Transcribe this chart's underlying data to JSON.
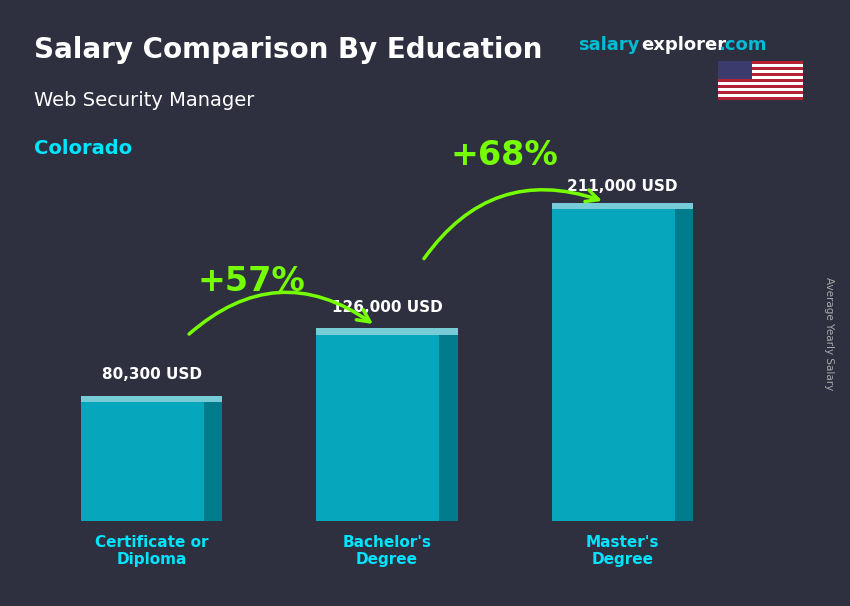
{
  "title": "Salary Comparison By Education",
  "subtitle": "Web Security Manager",
  "location": "Colorado",
  "ylabel": "Average Yearly Salary",
  "categories": [
    "Certificate or\nDiploma",
    "Bachelor's\nDegree",
    "Master's\nDegree"
  ],
  "values": [
    80300,
    126000,
    211000
  ],
  "value_labels": [
    "80,300 USD",
    "126,000 USD",
    "211,000 USD"
  ],
  "pct_labels": [
    "+57%",
    "+68%"
  ],
  "bar_color": "#00bcd4",
  "bar_color_dark": "#007a8a",
  "bar_color_light": "#80deea",
  "title_color": "#ffffff",
  "subtitle_color": "#ffffff",
  "location_color": "#00e5ff",
  "watermark_salary_color": "#00bcd4",
  "watermark_explorer_color": "#ffffff",
  "watermark_com_color": "#00bcd4",
  "xlabel_color": "#00e5ff",
  "value_label_color": "#ffffff",
  "pct_color": "#76ff03",
  "arrow_color": "#76ff03",
  "bg_color": "#2e3040",
  "bar_positions": [
    1,
    3,
    5
  ],
  "bar_width": 1.2,
  "ylim": [
    0,
    250000
  ],
  "figsize": [
    8.5,
    6.06
  ],
  "dpi": 100
}
